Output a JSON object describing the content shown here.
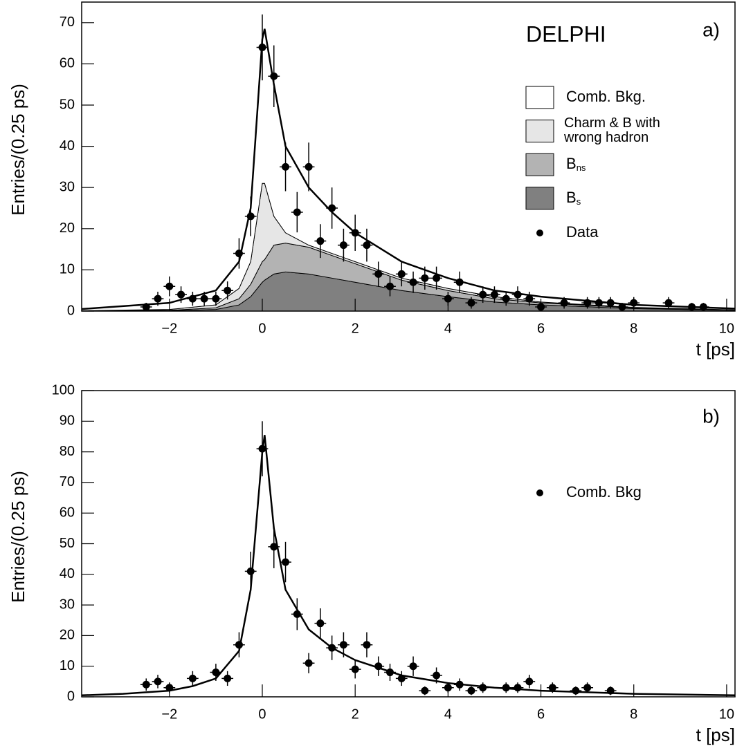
{
  "chart_data": [
    {
      "type": "scatter",
      "label": "a)",
      "experiment": "DELPHI",
      "xlabel": "t [ps]",
      "ylabel": "Entries/(0.25 ps)",
      "xlim": [
        -3.89,
        10.18
      ],
      "ylim": [
        0,
        75
      ],
      "xticks": [
        {
          "value": -2,
          "label": "−2"
        },
        0,
        2,
        4,
        6,
        8,
        10
      ],
      "yticks": [
        0,
        10,
        20,
        30,
        40,
        50,
        60,
        70
      ],
      "xerr": 0.125,
      "data": {
        "name": "Data",
        "color": "#000000",
        "x": [
          -2.5,
          -2.25,
          -2,
          -1.75,
          -1.5,
          -1.25,
          -1,
          -0.75,
          -0.5,
          -0.25,
          0,
          0.25,
          0.5,
          0.75,
          1,
          1.25,
          1.5,
          1.75,
          2,
          2.25,
          2.5,
          2.75,
          3,
          3.25,
          3.5,
          3.75,
          4,
          4.25,
          4.5,
          4.75,
          5,
          5.25,
          5.5,
          5.75,
          6,
          6.5,
          7,
          7.25,
          7.5,
          7.75,
          8,
          8.75,
          9.25,
          9.5
        ],
        "values": [
          1,
          3,
          6,
          4,
          3,
          3,
          3,
          5,
          14,
          23,
          64,
          57,
          35,
          24,
          35,
          17,
          25,
          16,
          19,
          16,
          9,
          6,
          9,
          7,
          8,
          8,
          3,
          7,
          2,
          4,
          4,
          3,
          4,
          3,
          1,
          2,
          2,
          2,
          2,
          1,
          2,
          2,
          1,
          1
        ],
        "errors": [
          1,
          1.7,
          2.4,
          2,
          1.7,
          1.7,
          1.7,
          2.2,
          3.7,
          4.8,
          8,
          7.5,
          5.9,
          4.9,
          5.9,
          4.1,
          5,
          4,
          4.4,
          4,
          3,
          2.4,
          3,
          2.6,
          2.8,
          2.8,
          1.7,
          2.6,
          1.4,
          2,
          2,
          1.7,
          2,
          1.7,
          1,
          1.4,
          1.4,
          1.4,
          1.4,
          1,
          1.4,
          1.4,
          1,
          1
        ]
      },
      "components": {
        "x": [
          -3.89,
          -2,
          -1,
          -0.5,
          -0.25,
          0,
          0.05,
          0.25,
          0.5,
          1,
          1.5,
          2,
          3,
          4,
          5,
          6,
          8,
          10.18
        ],
        "series": [
          {
            "name": "B",
            "subscript": "s",
            "color": "#808080",
            "values": [
              0,
              0.1,
              0.4,
              1.5,
              3.5,
              7,
              7.5,
              9,
              9.5,
              9,
              8,
              7,
              5,
              3.5,
              2.2,
              1.5,
              0.6,
              0.2
            ]
          },
          {
            "name": "B",
            "subscript": "ns",
            "color": "#b3b3b3",
            "values": [
              0,
              0.1,
              0.4,
              1.5,
              3,
              5,
              5,
              7,
              7,
              6.5,
              5.5,
              4.5,
              2.5,
              1.5,
              0.8,
              0.5,
              0.2,
              0.1
            ]
          },
          {
            "name": "Charm & B with wrong hadron",
            "color": "#e6e6e6",
            "values": [
              0.1,
              0.2,
              0.7,
              2.5,
              5.5,
              19,
              18.5,
              7,
              2.5,
              0.5,
              0.5,
              0.5,
              0.5,
              0.5,
              0.5,
              0.2,
              0.1,
              0
            ]
          },
          {
            "name": "Comb. Bkg.",
            "color": "#ffffff",
            "values": [
              0.4,
              1.6,
              3.5,
              6.5,
              13,
              35,
              37.5,
              32,
              21,
              14,
              10,
              7,
              4,
              2.5,
              1.5,
              1.3,
              0.6,
              0.3
            ]
          }
        ]
      }
    },
    {
      "type": "scatter",
      "label": "b)",
      "xlabel": "t [ps]",
      "ylabel": "Entries/(0.25 ps)",
      "xlim": [
        -3.89,
        10.18
      ],
      "ylim": [
        0,
        100
      ],
      "xticks": [
        {
          "value": -2,
          "label": "−2"
        },
        0,
        2,
        4,
        6,
        8,
        10
      ],
      "yticks": [
        0,
        10,
        20,
        30,
        40,
        50,
        60,
        70,
        80,
        90,
        100
      ],
      "xerr": 0.125,
      "data": {
        "name": "Comb. Bkg",
        "color": "#000000",
        "x": [
          -2.5,
          -2.25,
          -2,
          -1.5,
          -1,
          -0.75,
          -0.5,
          -0.25,
          0,
          0.25,
          0.5,
          0.75,
          1,
          1.25,
          1.5,
          1.75,
          2,
          2.25,
          2.5,
          2.75,
          3,
          3.25,
          3.5,
          3.75,
          4,
          4.25,
          4.5,
          4.75,
          5.25,
          5.5,
          5.75,
          6.25,
          6.75,
          7,
          7.5
        ],
        "values": [
          4,
          5,
          3,
          6,
          8,
          6,
          17,
          41,
          81,
          49,
          44,
          27,
          11,
          24,
          16,
          17,
          9,
          17,
          10,
          8,
          6,
          10,
          2,
          7,
          3,
          4,
          2,
          3,
          3,
          3,
          5,
          3,
          2,
          3,
          2
        ],
        "errors": [
          2,
          2.2,
          1.7,
          2.4,
          2.8,
          2.4,
          4.1,
          6.4,
          9,
          7,
          6.6,
          5.2,
          3.3,
          4.9,
          4,
          4.1,
          3,
          4.1,
          3.2,
          2.8,
          2.4,
          3.2,
          1.4,
          2.6,
          1.7,
          2,
          1.4,
          1.7,
          1.7,
          1.7,
          2.2,
          1.7,
          1.4,
          1.7,
          1.4
        ]
      },
      "fit": {
        "color": "#000000",
        "x": [
          -3.89,
          -3,
          -2,
          -1.5,
          -1,
          -0.5,
          -0.25,
          0,
          0.05,
          0.25,
          0.5,
          1,
          1.5,
          2,
          3,
          4,
          5,
          6,
          8,
          10.18
        ],
        "values": [
          0.5,
          1,
          2,
          3.5,
          6,
          15,
          35,
          80,
          85.5,
          55,
          35,
          22,
          16,
          12,
          7,
          4.5,
          3,
          2,
          1,
          0.5
        ]
      }
    }
  ]
}
